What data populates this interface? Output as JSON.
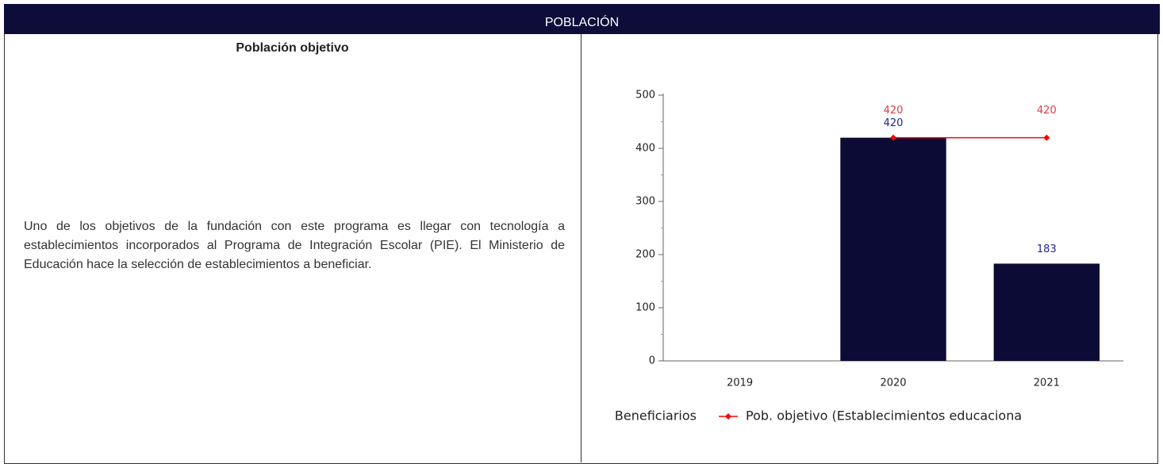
{
  "header": {
    "title": "POBLACIÓN"
  },
  "left": {
    "title": "Población objetivo",
    "text": "Uno de los objetivos de la fundación con este programa es llegar con tecnología a establecimientos incorporados al Programa de Integración Escolar (PIE). El Ministerio de Educación hace la selección de establecimientos a beneficiar."
  },
  "chart_data": {
    "type": "bar_line",
    "categories": [
      "2019",
      "2020",
      "2021"
    ],
    "series": [
      {
        "name": "Beneficiarios",
        "type": "bar",
        "color": "#0b0b36",
        "label_color": "#22229a",
        "values": [
          null,
          420,
          183
        ]
      },
      {
        "name": "Pob. objetivo (Establecimientos educaciona",
        "type": "line",
        "color": "#ff0000",
        "label_color": "#d9414a",
        "values": [
          null,
          420,
          420
        ]
      }
    ],
    "ylim": [
      0,
      500
    ],
    "yticks": [
      0,
      100,
      200,
      300,
      400,
      500
    ],
    "grid": false
  }
}
